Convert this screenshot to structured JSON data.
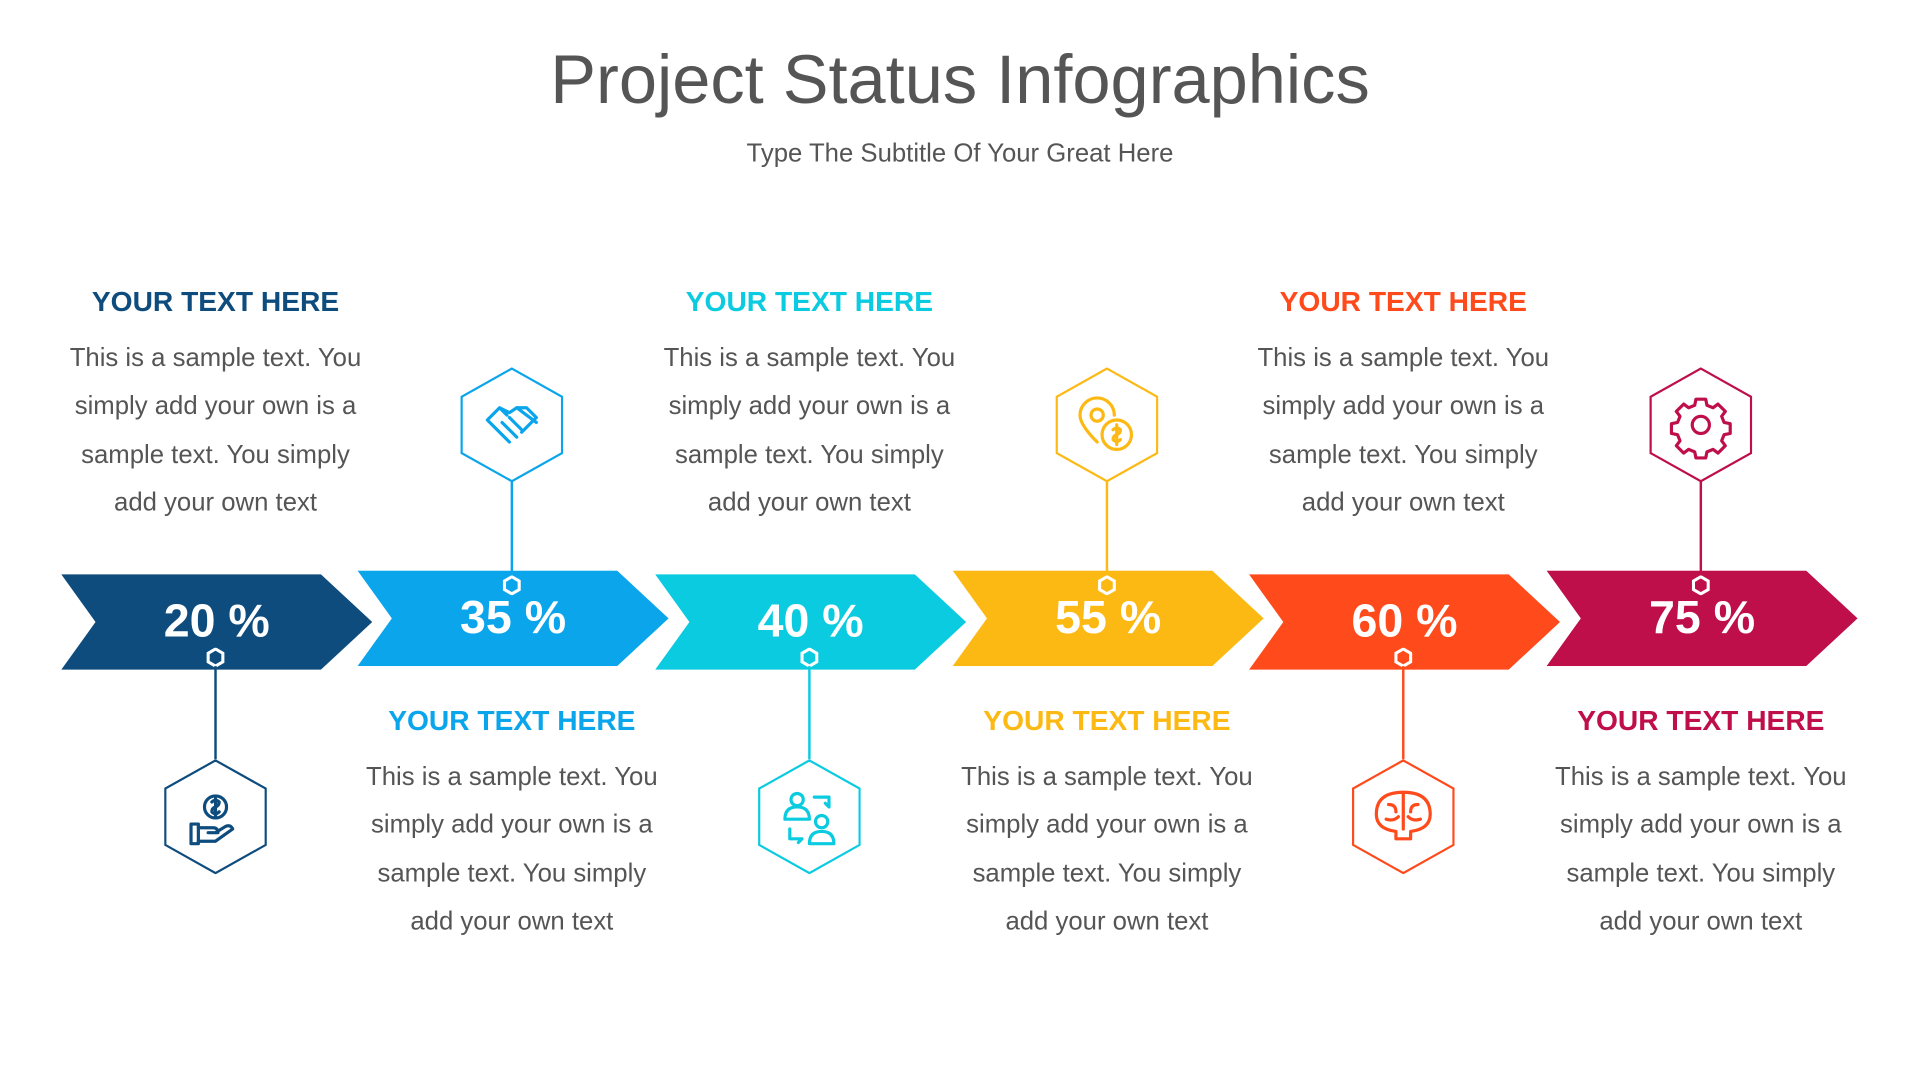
{
  "title": "Project Status Infographics",
  "subtitle": "Type The Subtitle Of Your Great Here",
  "steps": [
    {
      "percent": "20 %",
      "heading": "YOUR TEXT HERE",
      "lines": [
        "This is a sample text. You",
        "simply add your own is a",
        "sample text. You simply",
        "add your own text"
      ],
      "color": "#0E4C7E",
      "icon": "money-hand-icon"
    },
    {
      "percent": "35 %",
      "heading": "YOUR TEXT HERE",
      "lines": [
        "This is a sample text. You",
        "simply add your own is a",
        "sample text. You simply",
        "add your own text"
      ],
      "color": "#0BA5EC",
      "icon": "handshake-icon"
    },
    {
      "percent": "40 %",
      "heading": "YOUR TEXT HERE",
      "lines": [
        "This is a sample text. You",
        "simply add your own is a",
        "sample text. You simply",
        "add your own text"
      ],
      "color": "#0BCBE0",
      "icon": "user-exchange-icon"
    },
    {
      "percent": "55 %",
      "heading": "YOUR TEXT HERE",
      "lines": [
        "This is a sample text. You",
        "simply add your own is a",
        "sample text. You simply",
        "add your own text"
      ],
      "color": "#FDB913",
      "icon": "location-dollar-icon"
    },
    {
      "percent": "60 %",
      "heading": "YOUR TEXT HERE",
      "lines": [
        "This is a sample text. You",
        "simply add your own is a",
        "sample text. You simply",
        "add your own text"
      ],
      "color": "#FF4A1C",
      "icon": "brain-icon"
    },
    {
      "percent": "75 %",
      "heading": "YOUR TEXT HERE",
      "lines": [
        "This is a sample text. You",
        "simply add your own is a",
        "sample text. You simply",
        "add your own text"
      ],
      "color": "#BF0F4A",
      "icon": "gear-icon"
    }
  ]
}
